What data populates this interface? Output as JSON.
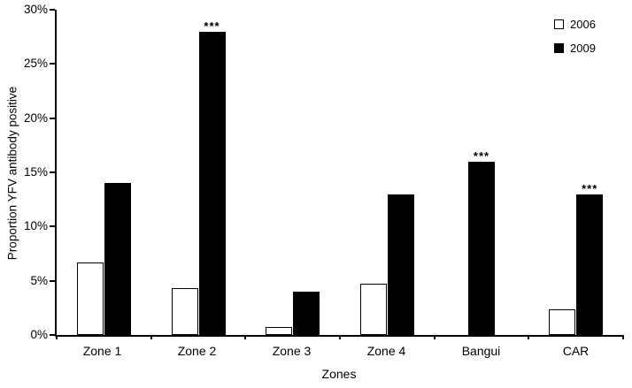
{
  "chart_data": {
    "type": "bar",
    "title": "",
    "xlabel": "Zones",
    "ylabel": "Proportion YFV antibody positive",
    "categories": [
      "Zone 1",
      "Zone 2",
      "Zone 3",
      "Zone 4",
      "Bangui",
      "CAR"
    ],
    "series": [
      {
        "name": "2006",
        "fill": "#ffffff",
        "border": "#000000",
        "values": [
          6.7,
          4.3,
          0.7,
          4.7,
          0,
          2.4
        ],
        "annotations": [
          "",
          "",
          "",
          "",
          "",
          ""
        ]
      },
      {
        "name": "2009",
        "fill": "#000000",
        "border": "#000000",
        "values": [
          14,
          28,
          4,
          13,
          16,
          13
        ],
        "annotations": [
          "",
          "***",
          "",
          "",
          "***",
          "***"
        ]
      }
    ],
    "ylim": [
      0,
      30
    ],
    "ytick_step": 5,
    "ytick_suffix": "%",
    "legend_position": "top-right",
    "grid": false
  }
}
